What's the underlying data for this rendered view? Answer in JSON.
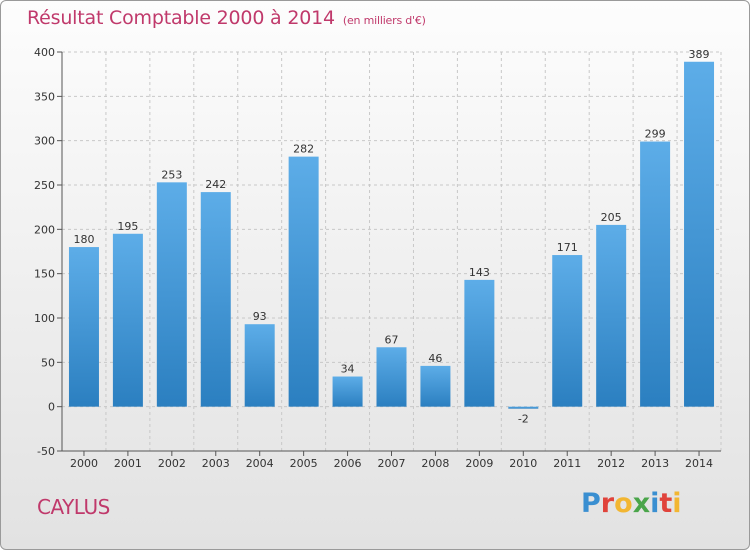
{
  "title": "Résultat Comptable 2000 à 2014",
  "title_unit": "(en milliers d'€)",
  "commune": "CAYLUS",
  "logo": {
    "text": "Proxiti",
    "letters": [
      {
        "char": "P",
        "color": "#3a8fd1"
      },
      {
        "char": "r",
        "color": "#e0433b"
      },
      {
        "char": "o",
        "color": "#f2b632"
      },
      {
        "char": "x",
        "color": "#4aa54a"
      },
      {
        "char": "i",
        "color": "#3a8fd1"
      },
      {
        "char": "t",
        "color": "#e0433b"
      },
      {
        "char": "i",
        "color": "#f2b632"
      }
    ]
  },
  "colors": {
    "title": "#c0396b",
    "bar_top": "#5dade8",
    "bar_bottom": "#2b7fc0",
    "grid": "#c8c8c8",
    "axis": "#555555"
  },
  "chart_data": {
    "type": "bar",
    "title": "Résultat Comptable 2000 à 2014",
    "xlabel": "",
    "ylabel": "",
    "categories": [
      "2000",
      "2001",
      "2002",
      "2003",
      "2004",
      "2005",
      "2006",
      "2007",
      "2008",
      "2009",
      "2010",
      "2011",
      "2012",
      "2013",
      "2014"
    ],
    "values": [
      180,
      195,
      253,
      242,
      93,
      282,
      34,
      67,
      46,
      143,
      -2,
      171,
      205,
      299,
      389
    ],
    "ylim": [
      -50,
      400
    ],
    "yticks": [
      -50,
      0,
      50,
      100,
      150,
      200,
      250,
      300,
      350,
      400
    ],
    "grid": "vertical dashed lines between categories",
    "legend": "none"
  }
}
